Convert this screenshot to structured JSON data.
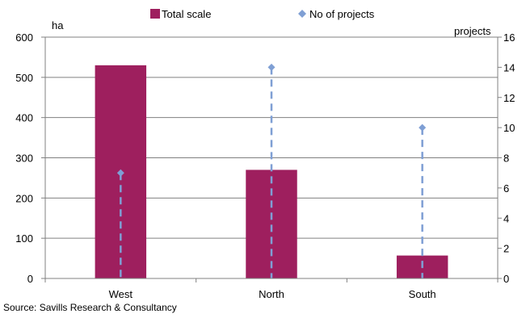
{
  "chart_data": {
    "type": "bar",
    "categories": [
      "West",
      "North",
      "South"
    ],
    "series": [
      {
        "name": "Total scale",
        "kind": "bar",
        "axis": "left",
        "color": "#9e1f5e",
        "values": [
          530,
          270,
          57
        ]
      },
      {
        "name": "No of projects",
        "kind": "dropline-marker",
        "axis": "right",
        "color": "#7f9fd4",
        "values": [
          7,
          14,
          10
        ]
      }
    ],
    "y_left": {
      "label": "ha",
      "ylim": [
        0,
        600
      ],
      "ticks": [
        "0",
        "100",
        "200",
        "300",
        "400",
        "500",
        "600"
      ]
    },
    "y_right": {
      "label": "projects",
      "ylim": [
        0,
        16
      ],
      "ticks": [
        "0",
        "2",
        "4",
        "6",
        "8",
        "10",
        "12",
        "14",
        "16"
      ]
    },
    "grid": true,
    "legend": "top-center"
  },
  "source": "Source: Savills Research & Consultancy"
}
